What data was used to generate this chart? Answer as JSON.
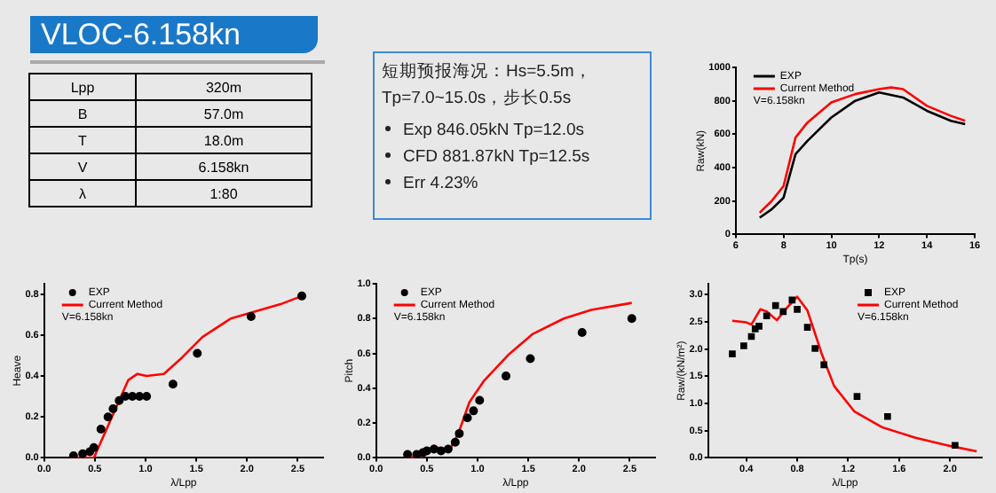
{
  "chart_data": [
    {
      "type": "other",
      "title": "VLOC-6.158kn",
      "annotations": [
        "Lpp",
        "320m",
        "B",
        "57.0m",
        "T",
        "18.0m",
        "V",
        "6.158kn",
        "λ",
        "1:80"
      ]
    },
    {
      "type": "other",
      "annotations": [
        "短期预报海况：Hs=5.5m，",
        "Tp=7.0~15.0s，步长0.5s",
        "Exp   846.05kN  Tp=12.0s",
        "CFD   881.87kN  Tp=12.5s",
        "Err    4.23%"
      ]
    },
    {
      "type": "line",
      "xlabel": "Tp(s)",
      "ylabel": "Raw(kN)",
      "xlim": [
        6,
        16
      ],
      "xticks": [
        6,
        8,
        10,
        12,
        14,
        16
      ],
      "ylim": [
        0,
        1000
      ],
      "yticks": [
        0,
        200,
        400,
        600,
        800,
        1000
      ],
      "legend": "top left",
      "annotations": [
        "V=6.158kn"
      ],
      "series": [
        {
          "name": "EXP",
          "color": "#000000",
          "x": [
            7,
            7.5,
            8,
            8.5,
            9,
            10,
            11,
            12,
            13,
            14,
            15,
            15.6
          ],
          "values": [
            100,
            150,
            220,
            480,
            560,
            700,
            800,
            850,
            820,
            740,
            680,
            660
          ]
        },
        {
          "name": "Current Method",
          "color": "#ff0000",
          "x": [
            7,
            7.5,
            8,
            8.5,
            9,
            10,
            11,
            12,
            12.5,
            13,
            14,
            15,
            15.6
          ],
          "values": [
            130,
            200,
            290,
            580,
            670,
            790,
            840,
            870,
            880,
            870,
            770,
            710,
            680
          ]
        }
      ]
    },
    {
      "type": "scatter",
      "xlabel": "λ/Lpp",
      "ylabel": "Heave",
      "xlim": [
        0,
        2.75
      ],
      "xticks": [
        {
          "value": 0,
          "label": "0.0"
        },
        {
          "value": 0.5,
          "label": "0.5"
        },
        {
          "value": 1,
          "label": "1.0"
        },
        {
          "value": 1.5,
          "label": "1.5"
        },
        {
          "value": 2,
          "label": "2.0"
        },
        {
          "value": 2.5,
          "label": "2.5"
        }
      ],
      "ylim": [
        0,
        0.85
      ],
      "yticks": [
        {
          "value": 0,
          "label": "0.0"
        },
        {
          "value": 0.2,
          "label": "0.2"
        },
        {
          "value": 0.4,
          "label": "0.4"
        },
        {
          "value": 0.6,
          "label": "0.6"
        },
        {
          "value": 0.8,
          "label": "0.8"
        }
      ],
      "legend": "top left",
      "annotations": [
        "V=6.158kn"
      ],
      "series": [
        {
          "name": "EXP",
          "type": "scatter",
          "marker": "circle",
          "color": "#000000",
          "x": [
            0.29,
            0.38,
            0.45,
            0.49,
            0.56,
            0.63,
            0.68,
            0.74,
            0.8,
            0.87,
            0.94,
            1.01,
            1.27,
            1.51,
            2.04,
            2.54
          ],
          "values": [
            0.01,
            0.02,
            0.03,
            0.05,
            0.14,
            0.2,
            0.24,
            0.28,
            0.3,
            0.3,
            0.3,
            0.3,
            0.36,
            0.51,
            0.69,
            0.79
          ]
        },
        {
          "name": "Current Method",
          "type": "line",
          "color": "#ff0000",
          "x": [
            0.26,
            0.49,
            0.66,
            0.83,
            0.92,
            1.01,
            1.18,
            1.36,
            1.56,
            1.84,
            2.05,
            2.33,
            2.54
          ],
          "values": [
            0,
            0,
            0.19,
            0.38,
            0.41,
            0.4,
            0.41,
            0.49,
            0.59,
            0.68,
            0.71,
            0.75,
            0.79
          ]
        }
      ]
    },
    {
      "type": "scatter",
      "xlabel": "λ/Lpp",
      "ylabel": "Pitch",
      "xlim": [
        0,
        2.75
      ],
      "xticks": [
        {
          "value": 0,
          "label": "0.0"
        },
        {
          "value": 0.5,
          "label": "0.5"
        },
        {
          "value": 1,
          "label": "1.0"
        },
        {
          "value": 1.5,
          "label": "1.5"
        },
        {
          "value": 2,
          "label": "2.0"
        },
        {
          "value": 2.5,
          "label": "2.5"
        }
      ],
      "ylim": [
        0,
        1
      ],
      "yticks": [
        {
          "value": 0,
          "label": "0.0"
        },
        {
          "value": 0.2,
          "label": "0.2"
        },
        {
          "value": 0.4,
          "label": "0.4"
        },
        {
          "value": 0.6,
          "label": "0.6"
        },
        {
          "value": 0.8,
          "label": "0.8"
        },
        {
          "value": 1,
          "label": "1.0"
        }
      ],
      "legend": "top left",
      "annotations": [
        "V=6.158kn"
      ],
      "series": [
        {
          "name": "EXP",
          "type": "scatter",
          "marker": "circle",
          "color": "#000000",
          "x": [
            0.31,
            0.4,
            0.46,
            0.5,
            0.57,
            0.64,
            0.71,
            0.78,
            0.82,
            0.9,
            0.96,
            1.02,
            1.28,
            1.52,
            2.03,
            2.52
          ],
          "values": [
            0.02,
            0.02,
            0.03,
            0.04,
            0.05,
            0.04,
            0.05,
            0.09,
            0.14,
            0.23,
            0.27,
            0.33,
            0.47,
            0.57,
            0.72,
            0.8
          ]
        },
        {
          "name": "Current Method",
          "type": "line",
          "color": "#ff0000",
          "x": [
            0.28,
            0.47,
            0.57,
            0.64,
            0.72,
            0.81,
            0.92,
            1.06,
            1.3,
            1.54,
            1.85,
            2.12,
            2.52
          ],
          "values": [
            0,
            0.01,
            0.07,
            0.05,
            0.04,
            0.14,
            0.32,
            0.44,
            0.59,
            0.71,
            0.8,
            0.85,
            0.89
          ]
        }
      ]
    },
    {
      "type": "scatter",
      "xlabel": "λ/Lpp",
      "ylabel": "Raw/(kN/m²)",
      "xlim": [
        0.1,
        2.25
      ],
      "xticks": [
        0.4,
        0.8,
        1.2,
        1.6,
        {
          "value": 2,
          "label": "2.0"
        }
      ],
      "ylim": [
        0,
        3.2
      ],
      "yticks": [
        {
          "value": 0,
          "label": "0.0"
        },
        {
          "value": 0.5,
          "label": "0.5"
        },
        {
          "value": 1,
          "label": "1.0"
        },
        {
          "value": 1.5,
          "label": "1.5"
        },
        {
          "value": 2,
          "label": "2.0"
        },
        {
          "value": 2.5,
          "label": "2.5"
        },
        {
          "value": 3,
          "label": "3.0"
        }
      ],
      "legend": "top right",
      "annotations": [
        "V=6.158kn"
      ],
      "series": [
        {
          "name": "EXP",
          "type": "scatter",
          "marker": "square",
          "color": "#000000",
          "x": [
            0.29,
            0.38,
            0.44,
            0.47,
            0.5,
            0.56,
            0.63,
            0.69,
            0.76,
            0.8,
            0.88,
            0.94,
            1.01,
            1.27,
            1.51,
            2.04
          ],
          "values": [
            1.91,
            2.06,
            2.23,
            2.37,
            2.42,
            2.61,
            2.8,
            2.69,
            2.9,
            2.73,
            2.4,
            2.01,
            1.71,
            1.13,
            0.76,
            0.23
          ]
        },
        {
          "name": "Current Method",
          "type": "line",
          "color": "#ff0000",
          "x": [
            0.29,
            0.4,
            0.44,
            0.51,
            0.56,
            0.64,
            0.72,
            0.8,
            0.88,
            0.99,
            1.09,
            1.25,
            1.47,
            1.73,
            2,
            2.21
          ],
          "values": [
            2.52,
            2.49,
            2.45,
            2.73,
            2.69,
            2.53,
            2.76,
            2.96,
            2.71,
            1.93,
            1.32,
            0.85,
            0.56,
            0.37,
            0.22,
            0.12
          ]
        }
      ]
    }
  ]
}
